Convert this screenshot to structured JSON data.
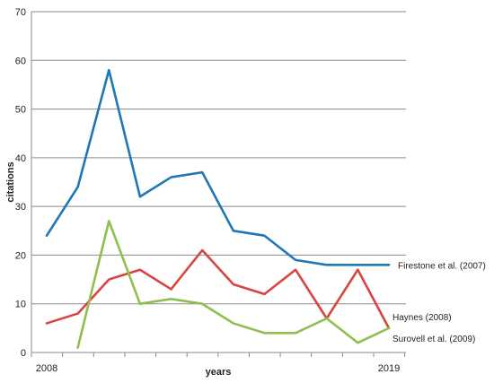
{
  "chart_data": {
    "type": "line",
    "xlabel": "years",
    "ylabel": "citations",
    "ylim": [
      0,
      70
    ],
    "yticks": [
      0,
      10,
      20,
      30,
      40,
      50,
      60,
      70
    ],
    "x": [
      2008,
      2009,
      2010,
      2011,
      2012,
      2013,
      2014,
      2015,
      2016,
      2017,
      2018,
      2019
    ],
    "xtick_labels": [
      {
        "x": 2008,
        "label": "2008"
      },
      {
        "x": 2019,
        "label": "2019"
      }
    ],
    "grid": "horizontal",
    "legend": "none",
    "series": [
      {
        "name": "Firestone et al. (2007)",
        "color": "#1f77b4",
        "x": [
          2008,
          2009,
          2010,
          2011,
          2012,
          2013,
          2014,
          2015,
          2016,
          2017,
          2018,
          2019
        ],
        "values": [
          24,
          34,
          58,
          32,
          36,
          37,
          25,
          24,
          19,
          18,
          18,
          18
        ]
      },
      {
        "name": "Haynes (2008)",
        "color": "#d9443f",
        "x": [
          2008,
          2009,
          2010,
          2011,
          2012,
          2013,
          2014,
          2015,
          2016,
          2017,
          2018,
          2019
        ],
        "values": [
          6,
          8,
          15,
          17,
          13,
          21,
          14,
          12,
          17,
          7,
          17,
          5
        ]
      },
      {
        "name": "Surovell et al. (2009)",
        "color": "#8dc04f",
        "x": [
          2009,
          2010,
          2011,
          2012,
          2013,
          2014,
          2015,
          2016,
          2017,
          2018,
          2019
        ],
        "values": [
          1,
          27,
          10,
          11,
          10,
          6,
          4,
          4,
          7,
          2,
          5
        ]
      }
    ]
  }
}
